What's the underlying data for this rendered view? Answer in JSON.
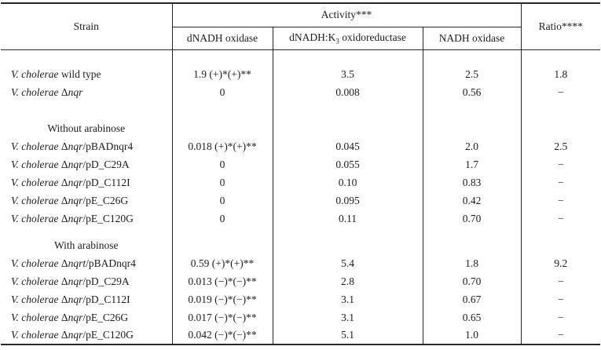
{
  "table": {
    "header": {
      "strain": "Strain",
      "activity": "Activity***",
      "ratio": "Ratio****",
      "sub1": "dNADH oxidase",
      "sub2_pre": "dNADH:K",
      "sub2_sub": "3",
      "sub2_post": " oxidoreductase",
      "sub3": "NADH oxidase"
    },
    "rows": [
      {
        "type": "spacer",
        "h": 20
      },
      {
        "type": "data",
        "strain": [
          [
            "V. cholerae",
            "i"
          ],
          [
            " wild type",
            ""
          ]
        ],
        "cells": [
          "1.9 (+)*(+)**",
          "3.5",
          "2.5",
          "1.8"
        ]
      },
      {
        "type": "data",
        "strain": [
          [
            "V. cholerae ",
            "i"
          ],
          [
            "Δ",
            ""
          ],
          [
            "nqr",
            "i"
          ]
        ],
        "cells": [
          "0",
          "0.008",
          "0.56",
          "−"
        ]
      },
      {
        "type": "spacer",
        "h": 23
      },
      {
        "type": "section",
        "label": "Without arabinose"
      },
      {
        "type": "data",
        "strain": [
          [
            "V. cholerae ",
            "i"
          ],
          [
            "Δ",
            ""
          ],
          [
            "nqr",
            "i"
          ],
          [
            "/pBADnqr4",
            ""
          ]
        ],
        "cells": [
          "0.018 (+)*(+)**",
          "0.045",
          "2.0",
          "2.5"
        ]
      },
      {
        "type": "data",
        "strain": [
          [
            "V. cholerae ",
            "i"
          ],
          [
            "Δ",
            ""
          ],
          [
            "nqr",
            "i"
          ],
          [
            "/pD_C29A",
            ""
          ]
        ],
        "cells": [
          "0",
          "0.055",
          "1.7",
          "−"
        ]
      },
      {
        "type": "data",
        "strain": [
          [
            "V. cholerae ",
            "i"
          ],
          [
            "Δ",
            ""
          ],
          [
            "nqr",
            "i"
          ],
          [
            "/pD_C112I",
            ""
          ]
        ],
        "cells": [
          "0",
          "0.10",
          "0.83",
          "−"
        ]
      },
      {
        "type": "data",
        "strain": [
          [
            "V. cholerae ",
            "i"
          ],
          [
            "Δ",
            ""
          ],
          [
            "nqr",
            "i"
          ],
          [
            "/pE_C26G",
            ""
          ]
        ],
        "cells": [
          "0",
          "0.095",
          "0.42",
          "−"
        ]
      },
      {
        "type": "data",
        "strain": [
          [
            "V. cholerae ",
            "i"
          ],
          [
            "Δ",
            ""
          ],
          [
            "nqr",
            "i"
          ],
          [
            "/pE_C120G",
            ""
          ]
        ],
        "cells": [
          "0",
          "0.11",
          "0.70",
          "−"
        ]
      },
      {
        "type": "spacer",
        "h": 11
      },
      {
        "type": "section",
        "label": "With arabinose"
      },
      {
        "type": "data",
        "strain": [
          [
            "V. cholerae ",
            "i"
          ],
          [
            "Δ",
            ""
          ],
          [
            "nqrt",
            "i"
          ],
          [
            "/pBADnqr4",
            ""
          ]
        ],
        "cells": [
          "0.59 (+)*(+)**",
          "5.4",
          "1.8",
          "9.2"
        ]
      },
      {
        "type": "data",
        "strain": [
          [
            "V. cholerae ",
            "i"
          ],
          [
            "Δ",
            ""
          ],
          [
            "nqr",
            "i"
          ],
          [
            "/pD_C29A",
            ""
          ]
        ],
        "cells": [
          "0.013 (−)*(−)**",
          "2.8",
          "0.70",
          "−"
        ]
      },
      {
        "type": "data",
        "strain": [
          [
            "V. cholerae ",
            "i"
          ],
          [
            "Δ",
            ""
          ],
          [
            "nqr",
            "i"
          ],
          [
            "/pD_C112I",
            ""
          ]
        ],
        "cells": [
          "0.019 (−)*(−)**",
          "3.1",
          "0.67",
          "−"
        ]
      },
      {
        "type": "data",
        "strain": [
          [
            "V. cholerae ",
            "i"
          ],
          [
            "Δ",
            ""
          ],
          [
            "nqr",
            "i"
          ],
          [
            "/pE_C26G",
            ""
          ]
        ],
        "cells": [
          "0.017 (−)*(−)**",
          "3.1",
          "0.65",
          "−"
        ]
      },
      {
        "type": "data",
        "strain": [
          [
            "V. cholerae ",
            "i"
          ],
          [
            "Δ",
            ""
          ],
          [
            "nqr",
            "i"
          ],
          [
            "/pE_C120G",
            ""
          ]
        ],
        "cells": [
          "0.042 (−)*(−)**",
          "5.1",
          "1.0",
          "−"
        ]
      }
    ]
  }
}
